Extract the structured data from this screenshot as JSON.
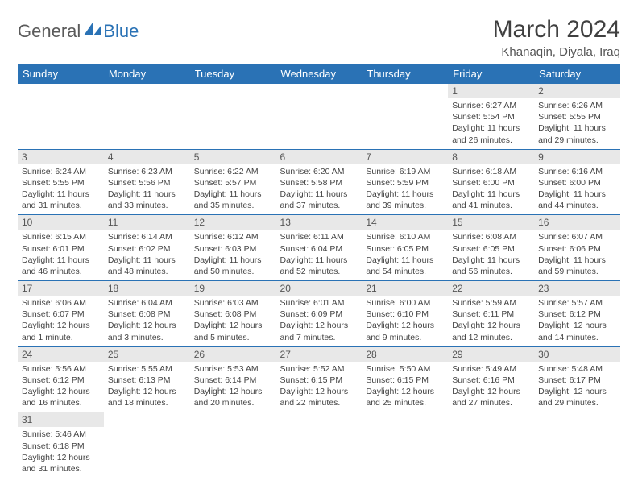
{
  "logo": {
    "part1": "General",
    "part2": "Blue"
  },
  "title": "March 2024",
  "location": "Khanaqin, Diyala, Iraq",
  "colors": {
    "header_bg": "#2a72b5",
    "header_text": "#ffffff",
    "daynum_bg": "#e8e8e8",
    "border": "#2a72b5",
    "text": "#444444",
    "title_text": "#404040"
  },
  "dayHeaders": [
    "Sunday",
    "Monday",
    "Tuesday",
    "Wednesday",
    "Thursday",
    "Friday",
    "Saturday"
  ],
  "weeks": [
    [
      null,
      null,
      null,
      null,
      null,
      {
        "n": "1",
        "sr": "Sunrise: 6:27 AM",
        "ss": "Sunset: 5:54 PM",
        "d1": "Daylight: 11 hours",
        "d2": "and 26 minutes."
      },
      {
        "n": "2",
        "sr": "Sunrise: 6:26 AM",
        "ss": "Sunset: 5:55 PM",
        "d1": "Daylight: 11 hours",
        "d2": "and 29 minutes."
      }
    ],
    [
      {
        "n": "3",
        "sr": "Sunrise: 6:24 AM",
        "ss": "Sunset: 5:55 PM",
        "d1": "Daylight: 11 hours",
        "d2": "and 31 minutes."
      },
      {
        "n": "4",
        "sr": "Sunrise: 6:23 AM",
        "ss": "Sunset: 5:56 PM",
        "d1": "Daylight: 11 hours",
        "d2": "and 33 minutes."
      },
      {
        "n": "5",
        "sr": "Sunrise: 6:22 AM",
        "ss": "Sunset: 5:57 PM",
        "d1": "Daylight: 11 hours",
        "d2": "and 35 minutes."
      },
      {
        "n": "6",
        "sr": "Sunrise: 6:20 AM",
        "ss": "Sunset: 5:58 PM",
        "d1": "Daylight: 11 hours",
        "d2": "and 37 minutes."
      },
      {
        "n": "7",
        "sr": "Sunrise: 6:19 AM",
        "ss": "Sunset: 5:59 PM",
        "d1": "Daylight: 11 hours",
        "d2": "and 39 minutes."
      },
      {
        "n": "8",
        "sr": "Sunrise: 6:18 AM",
        "ss": "Sunset: 6:00 PM",
        "d1": "Daylight: 11 hours",
        "d2": "and 41 minutes."
      },
      {
        "n": "9",
        "sr": "Sunrise: 6:16 AM",
        "ss": "Sunset: 6:00 PM",
        "d1": "Daylight: 11 hours",
        "d2": "and 44 minutes."
      }
    ],
    [
      {
        "n": "10",
        "sr": "Sunrise: 6:15 AM",
        "ss": "Sunset: 6:01 PM",
        "d1": "Daylight: 11 hours",
        "d2": "and 46 minutes."
      },
      {
        "n": "11",
        "sr": "Sunrise: 6:14 AM",
        "ss": "Sunset: 6:02 PM",
        "d1": "Daylight: 11 hours",
        "d2": "and 48 minutes."
      },
      {
        "n": "12",
        "sr": "Sunrise: 6:12 AM",
        "ss": "Sunset: 6:03 PM",
        "d1": "Daylight: 11 hours",
        "d2": "and 50 minutes."
      },
      {
        "n": "13",
        "sr": "Sunrise: 6:11 AM",
        "ss": "Sunset: 6:04 PM",
        "d1": "Daylight: 11 hours",
        "d2": "and 52 minutes."
      },
      {
        "n": "14",
        "sr": "Sunrise: 6:10 AM",
        "ss": "Sunset: 6:05 PM",
        "d1": "Daylight: 11 hours",
        "d2": "and 54 minutes."
      },
      {
        "n": "15",
        "sr": "Sunrise: 6:08 AM",
        "ss": "Sunset: 6:05 PM",
        "d1": "Daylight: 11 hours",
        "d2": "and 56 minutes."
      },
      {
        "n": "16",
        "sr": "Sunrise: 6:07 AM",
        "ss": "Sunset: 6:06 PM",
        "d1": "Daylight: 11 hours",
        "d2": "and 59 minutes."
      }
    ],
    [
      {
        "n": "17",
        "sr": "Sunrise: 6:06 AM",
        "ss": "Sunset: 6:07 PM",
        "d1": "Daylight: 12 hours",
        "d2": "and 1 minute."
      },
      {
        "n": "18",
        "sr": "Sunrise: 6:04 AM",
        "ss": "Sunset: 6:08 PM",
        "d1": "Daylight: 12 hours",
        "d2": "and 3 minutes."
      },
      {
        "n": "19",
        "sr": "Sunrise: 6:03 AM",
        "ss": "Sunset: 6:08 PM",
        "d1": "Daylight: 12 hours",
        "d2": "and 5 minutes."
      },
      {
        "n": "20",
        "sr": "Sunrise: 6:01 AM",
        "ss": "Sunset: 6:09 PM",
        "d1": "Daylight: 12 hours",
        "d2": "and 7 minutes."
      },
      {
        "n": "21",
        "sr": "Sunrise: 6:00 AM",
        "ss": "Sunset: 6:10 PM",
        "d1": "Daylight: 12 hours",
        "d2": "and 9 minutes."
      },
      {
        "n": "22",
        "sr": "Sunrise: 5:59 AM",
        "ss": "Sunset: 6:11 PM",
        "d1": "Daylight: 12 hours",
        "d2": "and 12 minutes."
      },
      {
        "n": "23",
        "sr": "Sunrise: 5:57 AM",
        "ss": "Sunset: 6:12 PM",
        "d1": "Daylight: 12 hours",
        "d2": "and 14 minutes."
      }
    ],
    [
      {
        "n": "24",
        "sr": "Sunrise: 5:56 AM",
        "ss": "Sunset: 6:12 PM",
        "d1": "Daylight: 12 hours",
        "d2": "and 16 minutes."
      },
      {
        "n": "25",
        "sr": "Sunrise: 5:55 AM",
        "ss": "Sunset: 6:13 PM",
        "d1": "Daylight: 12 hours",
        "d2": "and 18 minutes."
      },
      {
        "n": "26",
        "sr": "Sunrise: 5:53 AM",
        "ss": "Sunset: 6:14 PM",
        "d1": "Daylight: 12 hours",
        "d2": "and 20 minutes."
      },
      {
        "n": "27",
        "sr": "Sunrise: 5:52 AM",
        "ss": "Sunset: 6:15 PM",
        "d1": "Daylight: 12 hours",
        "d2": "and 22 minutes."
      },
      {
        "n": "28",
        "sr": "Sunrise: 5:50 AM",
        "ss": "Sunset: 6:15 PM",
        "d1": "Daylight: 12 hours",
        "d2": "and 25 minutes."
      },
      {
        "n": "29",
        "sr": "Sunrise: 5:49 AM",
        "ss": "Sunset: 6:16 PM",
        "d1": "Daylight: 12 hours",
        "d2": "and 27 minutes."
      },
      {
        "n": "30",
        "sr": "Sunrise: 5:48 AM",
        "ss": "Sunset: 6:17 PM",
        "d1": "Daylight: 12 hours",
        "d2": "and 29 minutes."
      }
    ],
    [
      {
        "n": "31",
        "sr": "Sunrise: 5:46 AM",
        "ss": "Sunset: 6:18 PM",
        "d1": "Daylight: 12 hours",
        "d2": "and 31 minutes."
      },
      null,
      null,
      null,
      null,
      null,
      null
    ]
  ]
}
